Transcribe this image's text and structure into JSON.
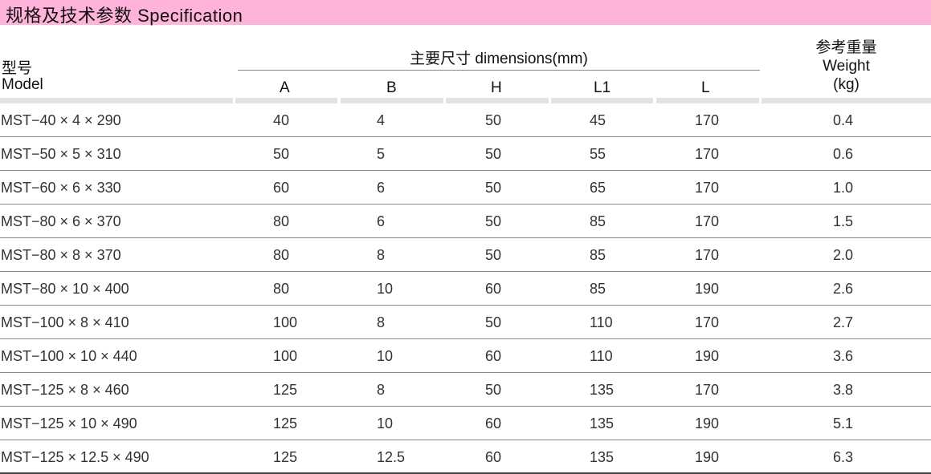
{
  "title": "规格及技术参数 Specification",
  "header": {
    "model_cn": "型号",
    "model_en": "Model",
    "dimensions": "主要尺寸  dimensions(mm)",
    "weight_cn": "参考重量",
    "weight_en": "Weight",
    "weight_unit": "(kg)",
    "cols": [
      "A",
      "B",
      "H",
      "L1",
      "L"
    ]
  },
  "accent_color": "#ffb3da",
  "rows": [
    [
      "MST−40 × 4 × 290",
      "40",
      "4",
      "50",
      "45",
      "170",
      "0.4"
    ],
    [
      "MST−50 × 5 × 310",
      "50",
      "5",
      "50",
      "55",
      "170",
      "0.6"
    ],
    [
      "MST−60 × 6 × 330",
      "60",
      "6",
      "50",
      "65",
      "170",
      "1.0"
    ],
    [
      "MST−80 × 6 × 370",
      "80",
      "6",
      "50",
      "85",
      "170",
      "1.5"
    ],
    [
      "MST−80 × 8 × 370",
      "80",
      "8",
      "50",
      "85",
      "170",
      "2.0"
    ],
    [
      "MST−80 × 10 × 400",
      "80",
      "10",
      "60",
      "85",
      "190",
      "2.6"
    ],
    [
      "MST−100 × 8 × 410",
      "100",
      "8",
      "50",
      "110",
      "170",
      "2.7"
    ],
    [
      "MST−100 × 10 × 440",
      "100",
      "10",
      "60",
      "110",
      "190",
      "3.6"
    ],
    [
      "MST−125 × 8 × 460",
      "125",
      "8",
      "50",
      "135",
      "170",
      "3.8"
    ],
    [
      "MST−125 × 10 × 490",
      "125",
      "10",
      "60",
      "135",
      "190",
      "5.1"
    ],
    [
      "MST−125 × 12.5 × 490",
      "125",
      "12.5",
      "60",
      "135",
      "190",
      "6.3"
    ]
  ]
}
